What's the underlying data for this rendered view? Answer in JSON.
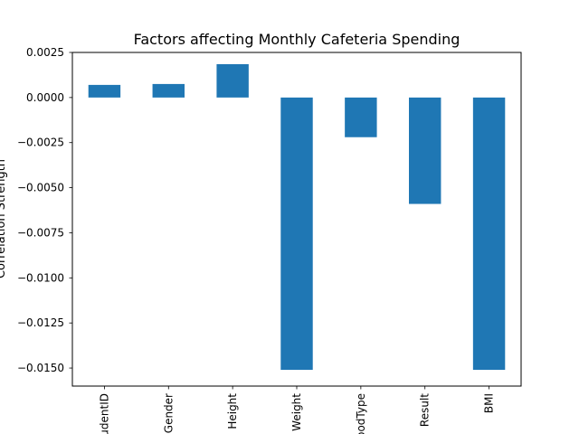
{
  "chart_data": {
    "type": "bar",
    "title": "Factors affecting Monthly Cafeteria Spending",
    "ylabel": "Correlation Strength",
    "categories": [
      "StudentID",
      "Gender",
      "Height",
      "Weight",
      "BloodType",
      "Result",
      "BMI"
    ],
    "values": [
      0.0007,
      0.00075,
      0.00185,
      -0.0151,
      -0.0022,
      -0.0059,
      -0.0151
    ],
    "ylim": [
      -0.016,
      0.0025
    ],
    "yticks": [
      0.0025,
      0.0,
      -0.0025,
      -0.005,
      -0.0075,
      -0.01,
      -0.0125,
      -0.015
    ],
    "ytick_labels": [
      "0.0025",
      "0.0000",
      "−0.0025",
      "−0.0050",
      "−0.0075",
      "−0.0100",
      "−0.0125",
      "−0.0150"
    ],
    "bar_color": "#1f77b4",
    "grid": false,
    "legend": false
  }
}
